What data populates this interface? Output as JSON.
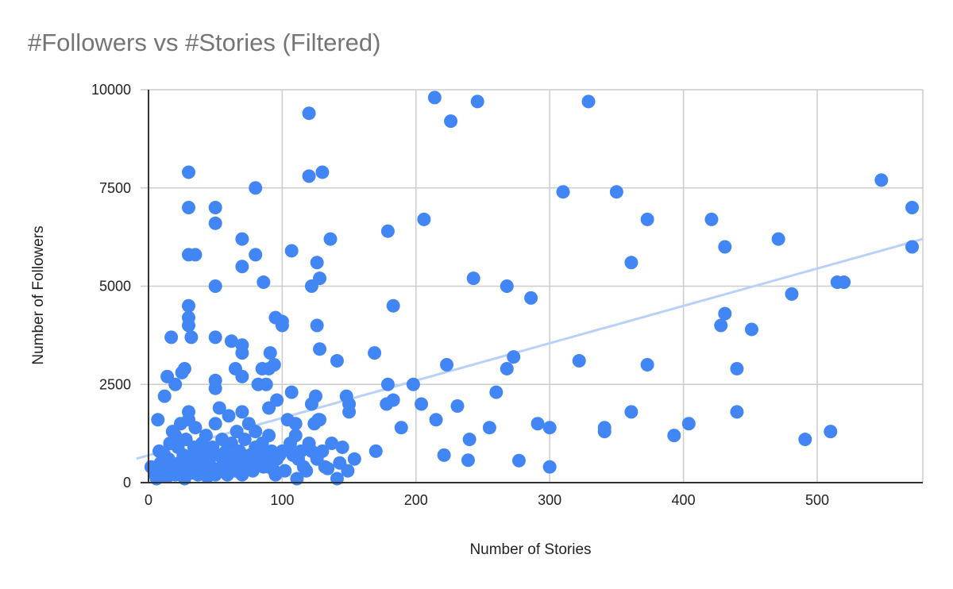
{
  "chart_data": {
    "type": "scatter",
    "title": "#Followers vs #Stories (Filtered)",
    "xlabel": "Number of Stories",
    "ylabel": "Number of Followers",
    "xlim": [
      0,
      579
    ],
    "ylim": [
      0,
      10000
    ],
    "xticks": [
      0,
      100,
      200,
      300,
      400,
      500
    ],
    "yticks": [
      0,
      2500,
      5000,
      7500,
      10000
    ],
    "grid": true,
    "legend": "none",
    "colors": {
      "points": "#4285f4",
      "trendline": "#b9d0f7",
      "grid": "#cccccc",
      "axis": "#333333",
      "title": "#757575"
    },
    "trendline": {
      "type": "linear",
      "from": [
        -9,
        610
      ],
      "to": [
        579,
        6200
      ]
    },
    "points": [
      [
        214,
        9800
      ],
      [
        246,
        9700
      ],
      [
        329,
        9700
      ],
      [
        226,
        9200
      ],
      [
        120,
        9400
      ],
      [
        30,
        7900
      ],
      [
        130,
        7900
      ],
      [
        120,
        7800
      ],
      [
        80,
        7500
      ],
      [
        310,
        7400
      ],
      [
        350,
        7400
      ],
      [
        548,
        7700
      ],
      [
        571,
        7000
      ],
      [
        30,
        7000
      ],
      [
        50,
        7000
      ],
      [
        206,
        6700
      ],
      [
        373,
        6700
      ],
      [
        421,
        6700
      ],
      [
        50,
        6600
      ],
      [
        70,
        6200
      ],
      [
        136,
        6200
      ],
      [
        471,
        6200
      ],
      [
        179,
        6400
      ],
      [
        431,
        6000
      ],
      [
        571,
        6000
      ],
      [
        107,
        5900
      ],
      [
        30,
        5800
      ],
      [
        35,
        5800
      ],
      [
        80,
        5800
      ],
      [
        126,
        5600
      ],
      [
        361,
        5600
      ],
      [
        70,
        5500
      ],
      [
        128,
        5200
      ],
      [
        243,
        5200
      ],
      [
        86,
        5100
      ],
      [
        515,
        5100
      ],
      [
        520,
        5100
      ],
      [
        50,
        5000
      ],
      [
        122,
        5000
      ],
      [
        268,
        5000
      ],
      [
        286,
        4700
      ],
      [
        481,
        4800
      ],
      [
        183,
        4500
      ],
      [
        30,
        4500
      ],
      [
        431,
        4300
      ],
      [
        30,
        4200
      ],
      [
        95,
        4200
      ],
      [
        100,
        4100
      ],
      [
        30,
        4000
      ],
      [
        100,
        4000
      ],
      [
        126,
        4000
      ],
      [
        428,
        4000
      ],
      [
        451,
        3900
      ],
      [
        17,
        3700
      ],
      [
        32,
        3700
      ],
      [
        50,
        3700
      ],
      [
        62,
        3600
      ],
      [
        70,
        3500
      ],
      [
        70,
        3300
      ],
      [
        169,
        3300
      ],
      [
        128,
        3400
      ],
      [
        91,
        3300
      ],
      [
        273,
        3200
      ],
      [
        141,
        3100
      ],
      [
        322,
        3100
      ],
      [
        223,
        3000
      ],
      [
        373,
        3000
      ],
      [
        94,
        3000
      ],
      [
        90,
        2900
      ],
      [
        65,
        2900
      ],
      [
        268,
        2900
      ],
      [
        440,
        2900
      ],
      [
        85,
        2900
      ],
      [
        27,
        2900
      ],
      [
        25,
        2800
      ],
      [
        70,
        2700
      ],
      [
        14,
        2700
      ],
      [
        20,
        2500
      ],
      [
        50,
        2600
      ],
      [
        50,
        2400
      ],
      [
        82,
        2500
      ],
      [
        88,
        2500
      ],
      [
        179,
        2500
      ],
      [
        198,
        2500
      ],
      [
        107,
        2300
      ],
      [
        260,
        2300
      ],
      [
        12,
        2200
      ],
      [
        125,
        2200
      ],
      [
        148,
        2200
      ],
      [
        96,
        2100
      ],
      [
        183,
        2100
      ],
      [
        204,
        2000
      ],
      [
        150,
        2000
      ],
      [
        178,
        2000
      ],
      [
        122,
        2000
      ],
      [
        231,
        1950
      ],
      [
        53,
        1900
      ],
      [
        90,
        1900
      ],
      [
        150,
        1800
      ],
      [
        361,
        1800
      ],
      [
        440,
        1800
      ],
      [
        30,
        1800
      ],
      [
        70,
        1800
      ],
      [
        215,
        1600
      ],
      [
        127,
        1600
      ],
      [
        291,
        1500
      ],
      [
        404,
        1500
      ],
      [
        7,
        1600
      ],
      [
        300,
        1400
      ],
      [
        341,
        1400
      ],
      [
        255,
        1400
      ],
      [
        189,
        1400
      ],
      [
        341,
        1300
      ],
      [
        510,
        1300
      ],
      [
        393,
        1200
      ],
      [
        240,
        1100
      ],
      [
        491,
        1100
      ],
      [
        137,
        1000
      ],
      [
        145,
        900
      ],
      [
        170,
        800
      ],
      [
        221,
        700
      ],
      [
        154,
        600
      ],
      [
        239,
        570
      ],
      [
        277,
        560
      ],
      [
        143,
        500
      ],
      [
        300,
        400
      ],
      [
        134,
        360
      ],
      [
        149,
        300
      ],
      [
        141,
        100
      ],
      [
        111,
        100
      ],
      [
        95,
        200
      ],
      [
        2,
        400
      ],
      [
        5,
        200
      ],
      [
        6,
        100
      ],
      [
        8,
        800
      ],
      [
        9,
        500
      ],
      [
        10,
        300
      ],
      [
        12,
        700
      ],
      [
        14,
        150
      ],
      [
        15,
        600
      ],
      [
        16,
        1000
      ],
      [
        18,
        1300
      ],
      [
        18,
        400
      ],
      [
        20,
        1200
      ],
      [
        20,
        200
      ],
      [
        22,
        900
      ],
      [
        23,
        500
      ],
      [
        24,
        1500
      ],
      [
        25,
        300
      ],
      [
        26,
        700
      ],
      [
        27,
        100
      ],
      [
        28,
        1100
      ],
      [
        30,
        600
      ],
      [
        30,
        1600
      ],
      [
        31,
        400
      ],
      [
        33,
        250
      ],
      [
        34,
        900
      ],
      [
        35,
        1400
      ],
      [
        36,
        700
      ],
      [
        37,
        200
      ],
      [
        38,
        500
      ],
      [
        40,
        1000
      ],
      [
        40,
        300
      ],
      [
        42,
        800
      ],
      [
        43,
        1200
      ],
      [
        44,
        150
      ],
      [
        45,
        600
      ],
      [
        47,
        400
      ],
      [
        48,
        900
      ],
      [
        50,
        200
      ],
      [
        50,
        1500
      ],
      [
        52,
        700
      ],
      [
        53,
        300
      ],
      [
        55,
        1100
      ],
      [
        56,
        500
      ],
      [
        58,
        800
      ],
      [
        59,
        200
      ],
      [
        60,
        1700
      ],
      [
        61,
        400
      ],
      [
        62,
        1000
      ],
      [
        63,
        600
      ],
      [
        65,
        300
      ],
      [
        66,
        1300
      ],
      [
        68,
        800
      ],
      [
        70,
        200
      ],
      [
        70,
        500
      ],
      [
        72,
        1100
      ],
      [
        74,
        400
      ],
      [
        75,
        1500
      ],
      [
        76,
        700
      ],
      [
        78,
        300
      ],
      [
        80,
        900
      ],
      [
        80,
        1300
      ],
      [
        82,
        500
      ],
      [
        84,
        600
      ],
      [
        85,
        1000
      ],
      [
        86,
        400
      ],
      [
        88,
        700
      ],
      [
        90,
        1200
      ],
      [
        90,
        400
      ],
      [
        92,
        800
      ],
      [
        94,
        300
      ],
      [
        96,
        600
      ],
      [
        98,
        700
      ],
      [
        100,
        800
      ],
      [
        102,
        300
      ],
      [
        104,
        1600
      ],
      [
        106,
        1000
      ],
      [
        108,
        700
      ],
      [
        110,
        1500
      ],
      [
        110,
        1200
      ],
      [
        112,
        600
      ],
      [
        114,
        800
      ],
      [
        116,
        400
      ],
      [
        118,
        300
      ],
      [
        120,
        1000
      ],
      [
        122,
        800
      ],
      [
        124,
        1500
      ],
      [
        126,
        600
      ],
      [
        128,
        1600
      ],
      [
        130,
        800
      ],
      [
        132,
        400
      ]
    ]
  }
}
